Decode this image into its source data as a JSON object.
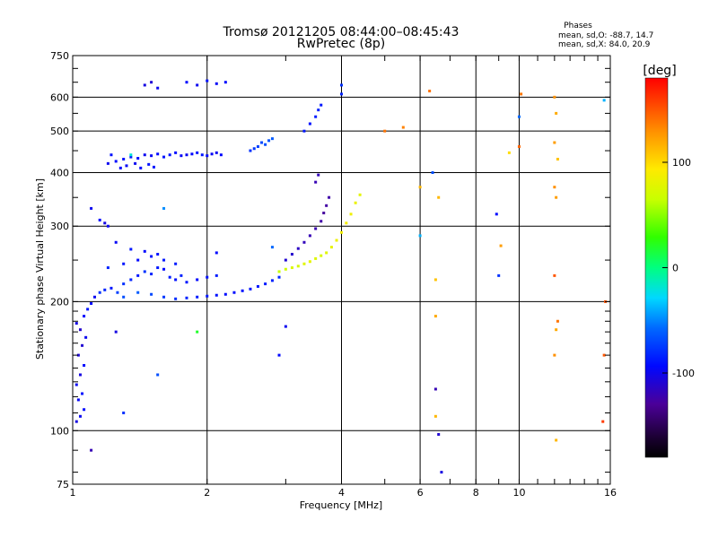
{
  "title": {
    "line1": "Tromsø 20121205 08:44:00–08:45:43",
    "line2": "RwPretec (8p)"
  },
  "stats": {
    "label": "Phases",
    "line_o": "mean, sd,O: -88.7, 14.7",
    "line_x": "mean, sd,X:  84.0, 20.9"
  },
  "colorbar": {
    "label": "[deg]",
    "ticks": [
      {
        "value": 100,
        "label": "100"
      },
      {
        "value": 0,
        "label": "0"
      },
      {
        "value": -100,
        "label": "-100"
      }
    ],
    "range": [
      -180,
      180
    ]
  },
  "chart_data": {
    "type": "scatter",
    "xlabel": "Frequency [MHz]",
    "ylabel": "Stationary phase Virtual Height [km]",
    "xscale": "log",
    "yscale": "log",
    "xlim": [
      1,
      16
    ],
    "ylim": [
      75,
      750
    ],
    "xticks": [
      {
        "value": 1,
        "label": "1"
      },
      {
        "value": 2,
        "label": "2"
      },
      {
        "value": 4,
        "label": "4"
      },
      {
        "value": 6,
        "label": "6"
      },
      {
        "value": 8,
        "label": "8"
      },
      {
        "value": 10,
        "label": "10"
      },
      {
        "value": 16,
        "label": "16"
      }
    ],
    "yticks": [
      {
        "value": 75,
        "label": "75"
      },
      {
        "value": 100,
        "label": "100"
      },
      {
        "value": 200,
        "label": "200"
      },
      {
        "value": 300,
        "label": "300"
      },
      {
        "value": 400,
        "label": "400"
      },
      {
        "value": 500,
        "label": "500"
      },
      {
        "value": 600,
        "label": "600"
      },
      {
        "value": 750,
        "label": "750"
      }
    ],
    "grid": true,
    "points": [
      [
        1.02,
        105,
        -105
      ],
      [
        1.04,
        108,
        -100
      ],
      [
        1.06,
        112,
        -95
      ],
      [
        1.03,
        118,
        -98
      ],
      [
        1.05,
        122,
        -92
      ],
      [
        1.02,
        128,
        -100
      ],
      [
        1.04,
        135,
        -105
      ],
      [
        1.06,
        142,
        -95
      ],
      [
        1.03,
        150,
        -108
      ],
      [
        1.05,
        158,
        -110
      ],
      [
        1.07,
        165,
        -100
      ],
      [
        1.04,
        172,
        -112
      ],
      [
        1.02,
        178,
        -105
      ],
      [
        1.06,
        185,
        -95
      ],
      [
        1.08,
        192,
        -90
      ],
      [
        1.1,
        198,
        -95
      ],
      [
        1.12,
        205,
        -100
      ],
      [
        1.15,
        210,
        -80
      ],
      [
        1.18,
        213,
        -85
      ],
      [
        1.22,
        215,
        -90
      ],
      [
        1.26,
        210,
        -75
      ],
      [
        1.3,
        220,
        -80
      ],
      [
        1.35,
        225,
        -85
      ],
      [
        1.4,
        230,
        -90
      ],
      [
        1.45,
        235,
        -80
      ],
      [
        1.5,
        232,
        -85
      ],
      [
        1.55,
        240,
        -90
      ],
      [
        1.6,
        238,
        -95
      ],
      [
        1.65,
        228,
        -88
      ],
      [
        1.7,
        225,
        -92
      ],
      [
        1.75,
        230,
        -86
      ],
      [
        1.8,
        222,
        -90
      ],
      [
        1.9,
        225,
        -95
      ],
      [
        2.0,
        228,
        -92
      ],
      [
        2.1,
        230,
        -88
      ],
      [
        1.3,
        205,
        -70
      ],
      [
        1.4,
        210,
        -65
      ],
      [
        1.5,
        208,
        -72
      ],
      [
        1.6,
        205,
        -78
      ],
      [
        1.7,
        203,
        -82
      ],
      [
        1.8,
        204,
        -86
      ],
      [
        1.9,
        205,
        -88
      ],
      [
        2.0,
        206,
        -90
      ],
      [
        2.1,
        207,
        -92
      ],
      [
        2.2,
        208,
        -94
      ],
      [
        2.3,
        210,
        -93
      ],
      [
        2.4,
        212,
        -92
      ],
      [
        2.5,
        214,
        -91
      ],
      [
        2.6,
        217,
        -90
      ],
      [
        2.7,
        220,
        -88
      ],
      [
        2.8,
        224,
        -86
      ],
      [
        2.9,
        228,
        -84
      ],
      [
        1.2,
        240,
        -85
      ],
      [
        1.3,
        245,
        -90
      ],
      [
        1.4,
        250,
        -95
      ],
      [
        1.5,
        255,
        -92
      ],
      [
        1.6,
        250,
        -90
      ],
      [
        1.7,
        245,
        -88
      ],
      [
        1.35,
        265,
        -90
      ],
      [
        1.45,
        262,
        -95
      ],
      [
        1.55,
        258,
        -92
      ],
      [
        1.25,
        275,
        -98
      ],
      [
        1.2,
        300,
        -100
      ],
      [
        1.15,
        310,
        -95
      ],
      [
        1.18,
        305,
        -105
      ],
      [
        1.1,
        330,
        -100
      ],
      [
        1.2,
        420,
        -100
      ],
      [
        1.25,
        425,
        -95
      ],
      [
        1.3,
        430,
        -92
      ],
      [
        1.35,
        435,
        -90
      ],
      [
        1.4,
        432,
        -95
      ],
      [
        1.45,
        440,
        -100
      ],
      [
        1.5,
        438,
        -98
      ],
      [
        1.55,
        442,
        -95
      ],
      [
        1.6,
        435,
        -92
      ],
      [
        1.65,
        440,
        -90
      ],
      [
        1.7,
        445,
        -95
      ],
      [
        1.75,
        438,
        -98
      ],
      [
        1.8,
        440,
        -100
      ],
      [
        1.85,
        442,
        -95
      ],
      [
        1.9,
        445,
        -92
      ],
      [
        1.95,
        440,
        -90
      ],
      [
        2.0,
        438,
        -95
      ],
      [
        2.05,
        442,
        -98
      ],
      [
        2.1,
        445,
        -100
      ],
      [
        2.15,
        440,
        -95
      ],
      [
        1.22,
        440,
        -92
      ],
      [
        1.28,
        410,
        -95
      ],
      [
        1.32,
        415,
        -98
      ],
      [
        1.38,
        420,
        -100
      ],
      [
        1.42,
        410,
        -95
      ],
      [
        1.48,
        418,
        -92
      ],
      [
        1.52,
        412,
        -90
      ],
      [
        2.5,
        450,
        -80
      ],
      [
        2.55,
        455,
        -78
      ],
      [
        2.6,
        460,
        -75
      ],
      [
        2.65,
        470,
        -72
      ],
      [
        2.7,
        465,
        -70
      ],
      [
        2.75,
        475,
        -68
      ],
      [
        2.8,
        480,
        -65
      ],
      [
        1.45,
        640,
        -105
      ],
      [
        1.5,
        650,
        -110
      ],
      [
        1.55,
        630,
        -100
      ],
      [
        1.8,
        650,
        -95
      ],
      [
        1.9,
        640,
        -100
      ],
      [
        2.0,
        655,
        -92
      ],
      [
        2.1,
        645,
        -98
      ],
      [
        2.2,
        650,
        -95
      ],
      [
        2.9,
        235,
        65
      ],
      [
        3.0,
        238,
        70
      ],
      [
        3.1,
        240,
        75
      ],
      [
        3.2,
        242,
        72
      ],
      [
        3.3,
        245,
        78
      ],
      [
        3.4,
        248,
        80
      ],
      [
        3.5,
        252,
        76
      ],
      [
        3.6,
        256,
        74
      ],
      [
        3.7,
        260,
        78
      ],
      [
        3.8,
        268,
        82
      ],
      [
        3.9,
        278,
        85
      ],
      [
        4.0,
        290,
        88
      ],
      [
        4.1,
        305,
        90
      ],
      [
        4.2,
        320,
        86
      ],
      [
        4.3,
        340,
        84
      ],
      [
        4.4,
        355,
        80
      ],
      [
        3.0,
        250,
        -110
      ],
      [
        3.1,
        258,
        -112
      ],
      [
        3.2,
        266,
        -115
      ],
      [
        3.3,
        275,
        -118
      ],
      [
        3.4,
        285,
        -120
      ],
      [
        3.5,
        296,
        -122
      ],
      [
        3.6,
        308,
        -125
      ],
      [
        3.65,
        322,
        -128
      ],
      [
        3.7,
        335,
        -126
      ],
      [
        3.75,
        350,
        -124
      ],
      [
        3.5,
        380,
        -120
      ],
      [
        3.55,
        395,
        -118
      ],
      [
        3.3,
        500,
        -90
      ],
      [
        3.4,
        520,
        -92
      ],
      [
        3.5,
        540,
        -88
      ],
      [
        3.55,
        560,
        -86
      ],
      [
        3.6,
        575,
        -90
      ],
      [
        4.0,
        640,
        -80
      ],
      [
        4.0,
        610,
        -85
      ],
      [
        2.9,
        150,
        -95
      ],
      [
        3.0,
        175,
        -100
      ],
      [
        6.3,
        620,
        140
      ],
      [
        6.5,
        185,
        120
      ],
      [
        6.5,
        225,
        110
      ],
      [
        6.6,
        350,
        115
      ],
      [
        6.4,
        400,
        -70
      ],
      [
        6.5,
        125,
        -120
      ],
      [
        6.6,
        98,
        -110
      ],
      [
        6.7,
        80,
        -105
      ],
      [
        6.5,
        108,
        115
      ],
      [
        9.0,
        230,
        -80
      ],
      [
        9.1,
        270,
        125
      ],
      [
        8.9,
        320,
        -95
      ],
      [
        9.5,
        445,
        100
      ],
      [
        10.0,
        540,
        -60
      ],
      [
        10.1,
        610,
        140
      ],
      [
        10.0,
        460,
        145
      ],
      [
        12.0,
        600,
        130
      ],
      [
        12.1,
        550,
        120
      ],
      [
        12.0,
        470,
        125
      ],
      [
        12.2,
        430,
        110
      ],
      [
        12.0,
        370,
        130
      ],
      [
        12.1,
        350,
        125
      ],
      [
        12.0,
        230,
        150
      ],
      [
        12.2,
        180,
        140
      ],
      [
        12.1,
        172,
        120
      ],
      [
        12.0,
        150,
        130
      ],
      [
        12.1,
        95,
        115
      ],
      [
        15.5,
        590,
        -40
      ],
      [
        15.6,
        200,
        150
      ],
      [
        15.5,
        150,
        150
      ],
      [
        15.4,
        105,
        160
      ],
      [
        5.0,
        500,
        140
      ],
      [
        5.5,
        510,
        135
      ],
      [
        6.0,
        370,
        115
      ],
      [
        6.0,
        285,
        -40
      ],
      [
        1.9,
        170,
        20
      ],
      [
        1.6,
        330,
        -50
      ],
      [
        1.35,
        440,
        -20
      ],
      [
        1.1,
        90,
        -120
      ],
      [
        1.3,
        110,
        -80
      ],
      [
        1.55,
        135,
        -70
      ],
      [
        1.25,
        170,
        -105
      ],
      [
        2.1,
        260,
        -95
      ],
      [
        2.8,
        268,
        -60
      ]
    ]
  }
}
